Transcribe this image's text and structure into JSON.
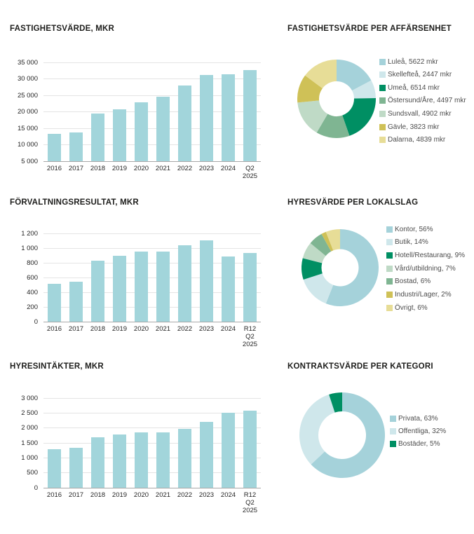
{
  "page": {
    "background": "#ffffff",
    "title_color": "#1d1d1b",
    "axis_text_color": "#262626",
    "legend_text_color": "#4d4d4d",
    "gridline_color": "#e4e4e4",
    "baseline_color": "#a8a8a8",
    "accent_teal": "#a2d5db"
  },
  "chart_data": [
    {
      "type": "bar",
      "title": "FASTIGHETSVÄRDE, MKR",
      "categories": [
        [
          "2016"
        ],
        [
          "2017"
        ],
        [
          "2018"
        ],
        [
          "2019"
        ],
        [
          "2020"
        ],
        [
          "2021"
        ],
        [
          "2022"
        ],
        [
          "2023"
        ],
        [
          "2024"
        ],
        [
          "Q2",
          "2025"
        ]
      ],
      "values": [
        13400,
        13700,
        19500,
        20800,
        22900,
        24600,
        28000,
        31100,
        31400,
        32644
      ],
      "ylim": [
        5000,
        35000
      ],
      "yticks": [
        "5 000",
        "10 000",
        "15 000",
        "20 000",
        "25 000",
        "30 000",
        "35 000"
      ],
      "bar_color": "#a2d5db",
      "grid": true,
      "legend_position": "none"
    },
    {
      "type": "pie",
      "title": "FASTIGHETSVÄRDE PER AFFÄRSENHET",
      "legend_position": "right",
      "slices": [
        {
          "label": "Luleå",
          "value": 5622,
          "display": "Luleå, 5622 mkr",
          "color": "#a5d2da"
        },
        {
          "label": "Skellefteå",
          "value": 2447,
          "display": "Skellefteå, 2447 mkr",
          "color": "#cfe7eb"
        },
        {
          "label": "Umeå",
          "value": 6514,
          "display": "Umeå, 6514 mkr",
          "color": "#008f63"
        },
        {
          "label": "Östersund/Åre",
          "value": 4497,
          "display": "Östersund/Åre, 4497 mkr",
          "color": "#7fb592"
        },
        {
          "label": "Sundsvall",
          "value": 4902,
          "display": "Sundsvall, 4902 mkr",
          "color": "#bfdac6"
        },
        {
          "label": "Gävle",
          "value": 3823,
          "display": "Gävle, 3823 mkr",
          "color": "#cfc157"
        },
        {
          "label": "Dalarna",
          "value": 4839,
          "display": "Dalarna, 4839 mkr",
          "color": "#e7dd97"
        }
      ]
    },
    {
      "type": "bar",
      "title": "FÖRVALTNINGSRESULTAT, MKR",
      "categories": [
        [
          "2016"
        ],
        [
          "2017"
        ],
        [
          "2018"
        ],
        [
          "2019"
        ],
        [
          "2020"
        ],
        [
          "2021"
        ],
        [
          "2022"
        ],
        [
          "2023"
        ],
        [
          "2024"
        ],
        [
          "R12",
          "Q2",
          "2025"
        ]
      ],
      "values": [
        510,
        545,
        825,
        900,
        950,
        955,
        1035,
        1105,
        890,
        935
      ],
      "ylim": [
        0,
        1200
      ],
      "yticks": [
        "0",
        "200",
        "400",
        "600",
        "800",
        "1 000",
        "1 200"
      ],
      "bar_color": "#a2d5db",
      "grid": true,
      "legend_position": "none"
    },
    {
      "type": "pie",
      "title": "HYRESVÄRDE PER LOKALSLAG",
      "legend_position": "right",
      "slices": [
        {
          "label": "Kontor",
          "value": 56,
          "display": "Kontor, 56%",
          "color": "#a5d2da"
        },
        {
          "label": "Butik",
          "value": 14,
          "display": "Butik, 14%",
          "color": "#cfe7eb"
        },
        {
          "label": "Hotell/Restaurang",
          "value": 9,
          "display": "Hotell/Restaurang, 9%",
          "color": "#008f63"
        },
        {
          "label": "Vård/utbildning",
          "value": 7,
          "display": "Vård/utbildning, 7%",
          "color": "#bfdac6"
        },
        {
          "label": "Bostad",
          "value": 6,
          "display": "Bostad, 6%",
          "color": "#7fb592"
        },
        {
          "label": "Industri/Lager",
          "value": 2,
          "display": "Industri/Lager, 2%",
          "color": "#cfc157"
        },
        {
          "label": "Övrigt",
          "value": 6,
          "display": "Övrigt, 6%",
          "color": "#e7dd97"
        }
      ]
    },
    {
      "type": "bar",
      "title": "HYRESINTÄKTER, MKR",
      "categories": [
        [
          "2016"
        ],
        [
          "2017"
        ],
        [
          "2018"
        ],
        [
          "2019"
        ],
        [
          "2020"
        ],
        [
          "2021"
        ],
        [
          "2022"
        ],
        [
          "2023"
        ],
        [
          "2024"
        ],
        [
          "R12",
          "Q2",
          "2025"
        ]
      ],
      "values": [
        1300,
        1330,
        1700,
        1775,
        1855,
        1860,
        1965,
        2210,
        2520,
        2575
      ],
      "ylim": [
        0,
        3000
      ],
      "yticks": [
        "0",
        "500",
        "1 000",
        "1 500",
        "2 000",
        "2 500",
        "3 000"
      ],
      "bar_color": "#a2d5db",
      "grid": true,
      "legend_position": "none"
    },
    {
      "type": "pie",
      "title": "KONTRAKTSVÄRDE PER KATEGORI",
      "legend_position": "right",
      "slices": [
        {
          "label": "Privata",
          "value": 63,
          "display": "Privata, 63%",
          "color": "#a5d2da"
        },
        {
          "label": "Offentliga",
          "value": 32,
          "display": "Offentliga, 32%",
          "color": "#cfe7eb"
        },
        {
          "label": "Bostäder",
          "value": 5,
          "display": "Bostäder, 5%",
          "color": "#008f63"
        }
      ]
    }
  ]
}
